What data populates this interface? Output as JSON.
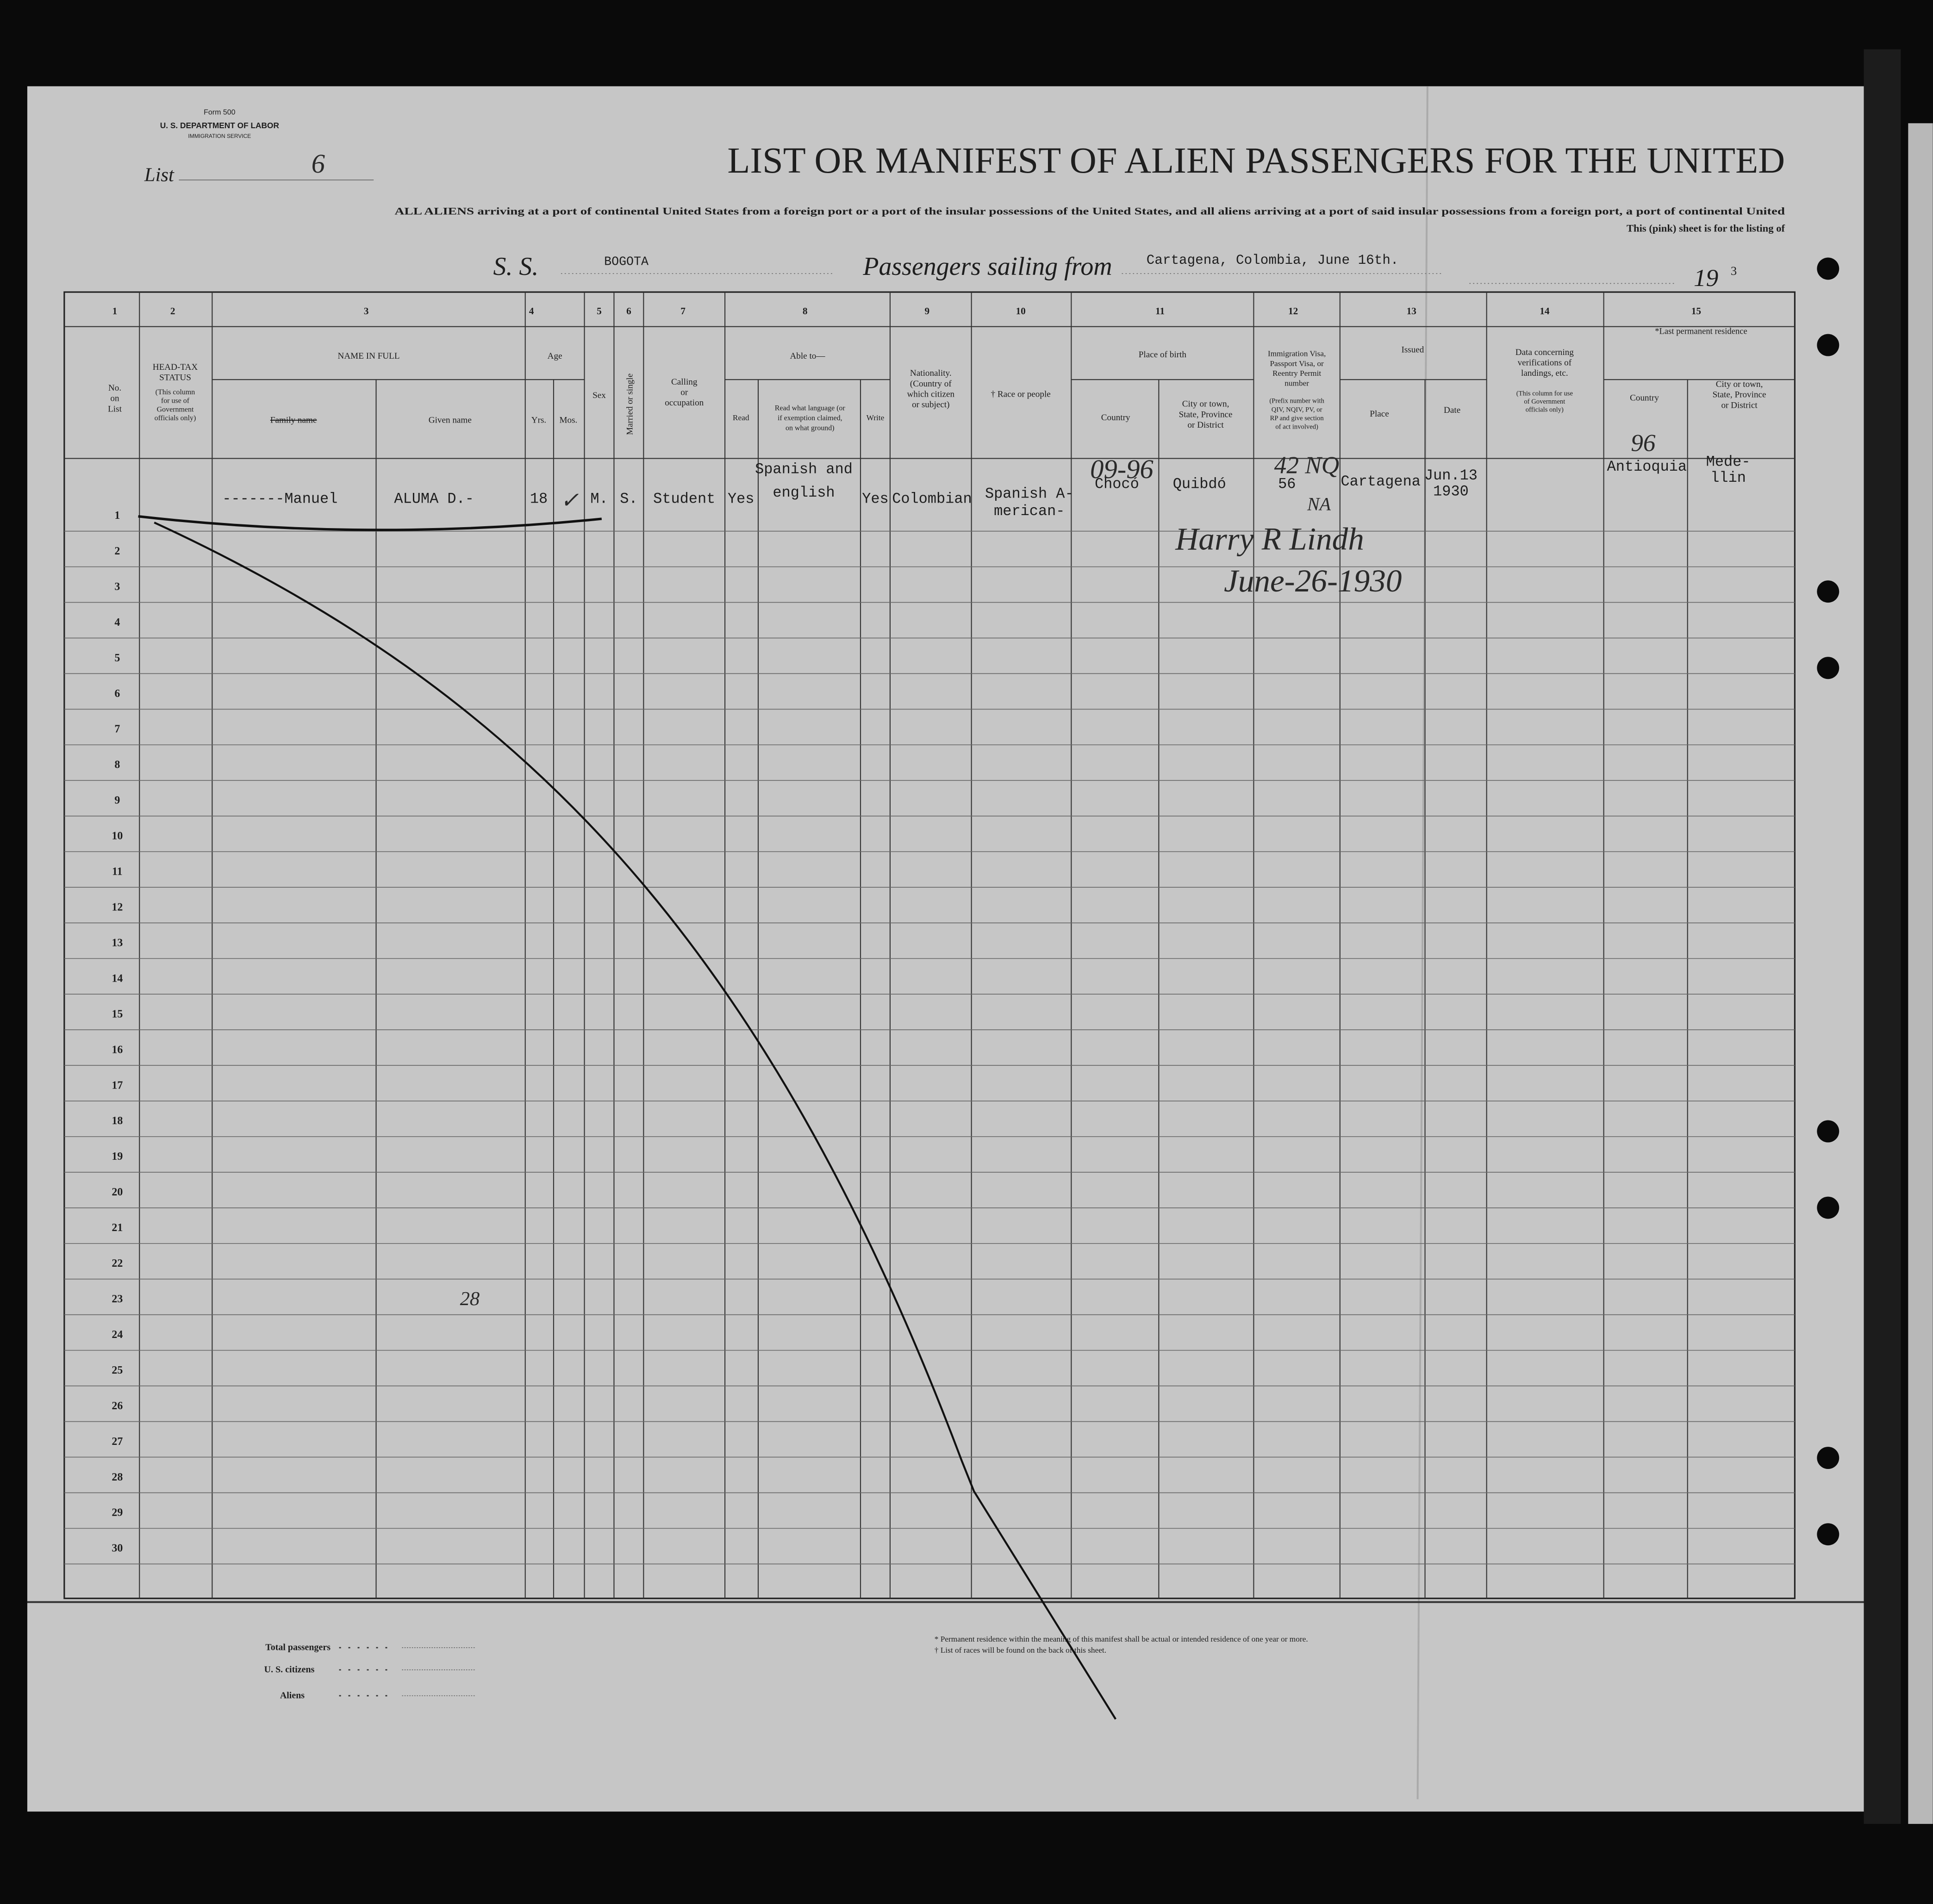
{
  "header": {
    "form": "Form 500",
    "department": "U. S. DEPARTMENT OF LABOR",
    "service": "IMMIGRATION SERVICE",
    "list_label": "List",
    "list_number": "6",
    "title": "LIST OR MANIFEST OF ALIEN PASSENGERS FOR THE UNITED",
    "subtitle": "ALL ALIENS arriving at a port of continental United States from a foreign port or a port of the insular possessions of the United States, and all aliens arriving at a port of said insular possessions from a foreign port, a port of continental United",
    "subtitle_end": "This (pink) sheet is for the listing of",
    "ship_label": "S. S.",
    "ship": "BOGOTA",
    "sailing_label": "Passengers sailing from",
    "sailing_from": "Cartagena, Colombia, June 16th.",
    "year_label": "19",
    "year_suffix": "3"
  },
  "columns": [
    {
      "number": "1",
      "heading": [
        "No.",
        "on",
        "List"
      ]
    },
    {
      "number": "2",
      "heading": [
        "HEAD-TAX",
        "STATUS"
      ],
      "note": [
        "(This column",
        "for use of",
        "Government",
        "officials only)"
      ]
    },
    {
      "number": "3",
      "heading": [
        "NAME IN FULL"
      ],
      "sub": [
        "Family name",
        "Given name"
      ]
    },
    {
      "number": "4",
      "heading": [
        "Age"
      ],
      "sub": [
        "Yrs.",
        "Mos."
      ]
    },
    {
      "number": "5",
      "heading": [
        "Sex"
      ]
    },
    {
      "number": "6",
      "heading": [
        "Married or single"
      ]
    },
    {
      "number": "7",
      "heading": [
        "Calling",
        "or",
        "occupation"
      ]
    },
    {
      "number": "8",
      "heading": [
        "Able to—"
      ],
      "sub": [
        "Read",
        "Read what language (or",
        "if exemption claimed,",
        "on what ground)",
        "Write"
      ]
    },
    {
      "number": "9",
      "heading": [
        "Nationality.",
        "(Country of",
        "which citizen",
        "or subject)"
      ]
    },
    {
      "number": "10",
      "heading": [
        "† Race or people"
      ]
    },
    {
      "number": "11",
      "heading": [
        "Place of birth"
      ],
      "sub": [
        "Country",
        "City or town,",
        "State, Province",
        "or District"
      ]
    },
    {
      "number": "12",
      "heading": [
        "Immigration Visa,",
        "Passport Visa, or",
        "Reentry Permit",
        "number"
      ],
      "note": [
        "(Prefix number with",
        "QIV, NQIV, PV, or",
        "RP and give section",
        "of act involved)"
      ]
    },
    {
      "number": "13",
      "heading": [
        "Issued"
      ],
      "sub": [
        "Place",
        "Date"
      ]
    },
    {
      "number": "14",
      "heading": [
        "Data concerning",
        "verifications of",
        "landings, etc."
      ],
      "note": [
        "(This column for use",
        "of Government",
        "officials only)"
      ]
    },
    {
      "number": "15",
      "heading": [
        "*Last permanent residence"
      ],
      "sub": [
        "Country",
        "City or town,",
        "State, Province",
        "or District"
      ]
    }
  ],
  "row_numbers": [
    "1",
    "2",
    "3",
    "4",
    "5",
    "6",
    "7",
    "8",
    "9",
    "10",
    "11",
    "12",
    "13",
    "14",
    "15",
    "16",
    "17",
    "18",
    "19",
    "20",
    "21",
    "22",
    "23",
    "24",
    "25",
    "26",
    "27",
    "28",
    "29",
    "30"
  ],
  "passenger": {
    "family_name": "-------Manuel",
    "given_name": "ALUMA D.-",
    "age_years": "18",
    "sex": "M.",
    "marital": "S.",
    "calling": "Student",
    "read": "Yes",
    "language": [
      "Spanish and",
      "english"
    ],
    "write": "Yes",
    "nationality": "Colombian",
    "race": [
      "Spanish A-",
      "merican-"
    ],
    "birth_country": "Chocó",
    "birth_city": "Quibdó",
    "visa": "56",
    "issued_place": "Cartagena",
    "issued_date": [
      "Jun.13",
      "1930"
    ],
    "residence_country": "Antioquia",
    "residence_city": [
      "Mede-",
      "llin"
    ]
  },
  "annotations": {
    "mos_check": "✓",
    "code_birth": "09-96",
    "code_visa": "42 NQ",
    "initials": "NA",
    "signature": "Harry R Lindh",
    "date": "June-26-1930",
    "code_residence": "96",
    "page_count": "28"
  },
  "footer": {
    "total_passengers": "Total passengers",
    "us_citizens": "U. S. citizens",
    "aliens": "Aliens",
    "note_residence": "* Permanent residence within the meaning of this manifest shall be actual or intended residence of one year or more.",
    "note_races": "† List of races will be found on the back of this sheet."
  }
}
